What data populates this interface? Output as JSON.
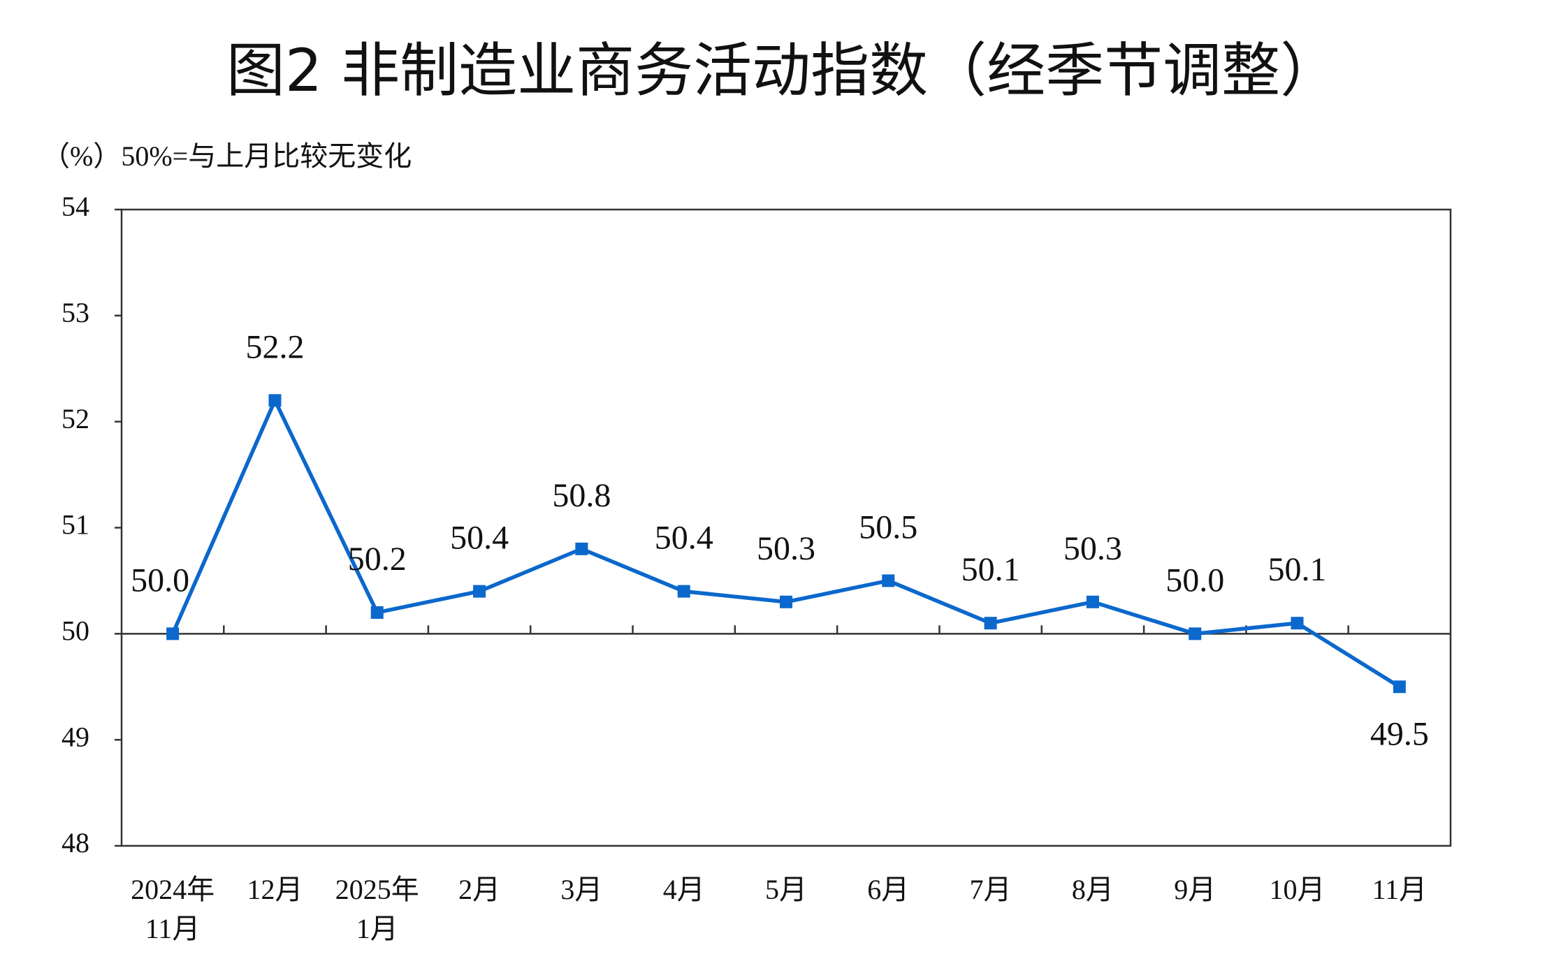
{
  "chart_data": {
    "type": "line",
    "title": "图2  非制造业商务活动指数（经季节调整）",
    "subtitle": "（%）50%=与上月比较无变化",
    "categories": [
      "2024年\n11月",
      "12月",
      "2025年\n1月",
      "2月",
      "3月",
      "4月",
      "5月",
      "6月",
      "7月",
      "8月",
      "9月",
      "10月",
      "11月"
    ],
    "values": [
      50.0,
      52.2,
      50.2,
      50.4,
      50.8,
      50.4,
      50.3,
      50.5,
      50.1,
      50.3,
      50.0,
      50.1,
      49.5
    ],
    "value_labels": [
      "50.0",
      "52.2",
      "50.2",
      "50.4",
      "50.8",
      "50.4",
      "50.3",
      "50.5",
      "50.1",
      "50.3",
      "50.0",
      "50.1",
      "49.5"
    ],
    "color": "#0b68cc",
    "ylim": [
      48,
      54
    ],
    "yticks": [
      48,
      49,
      50,
      51,
      52,
      53,
      54
    ],
    "baseline": 50,
    "grid": false
  }
}
